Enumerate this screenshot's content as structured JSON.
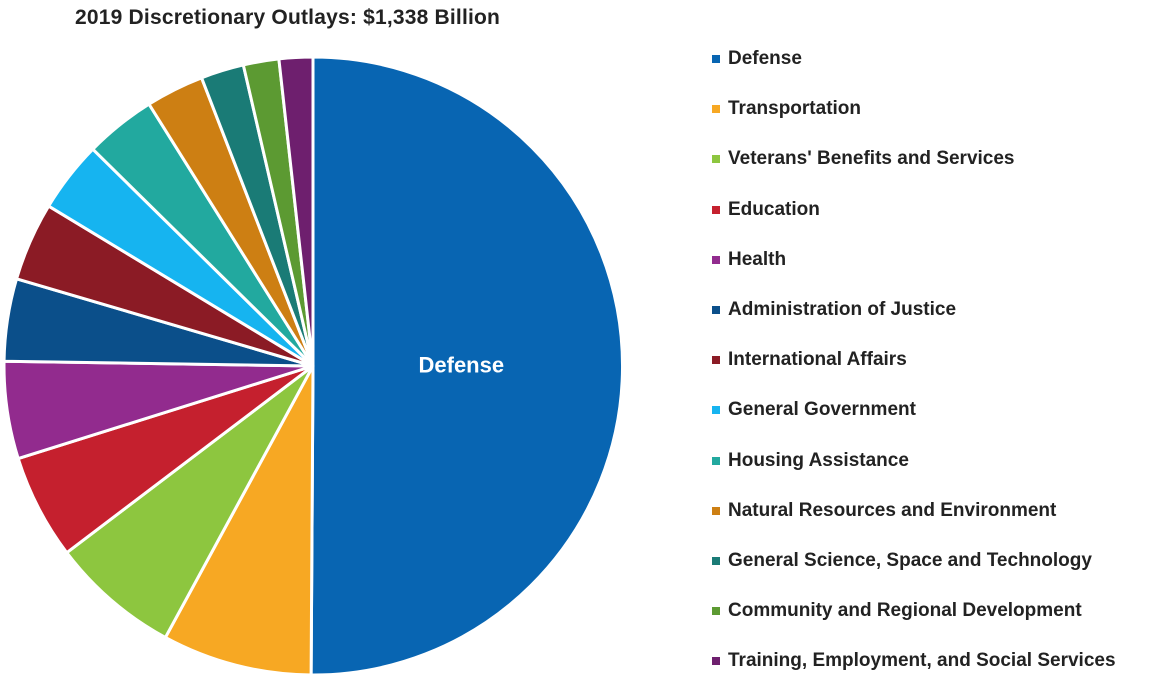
{
  "chart_data": {
    "type": "pie",
    "title": "2019 Discretionary Outlays: $1,338 Billion",
    "labels": [
      "Defense",
      "Transportation",
      "Veterans' Benefits and Services",
      "Education",
      "Health",
      "Administration of Justice",
      "International Affairs",
      "General Government",
      "Housing Assistance",
      "Natural Resources and Environment",
      "General Science, Space and Technology",
      "Community and Regional Development",
      "Training, Employment, and Social Services"
    ],
    "values": [
      51.2,
      8.0,
      6.9,
      5.6,
      5.2,
      4.4,
      4.2,
      3.8,
      3.8,
      3.1,
      2.3,
      1.9,
      1.8
    ],
    "colors": [
      "#0865b2",
      "#f7a823",
      "#8dc63f",
      "#c5202e",
      "#922b8e",
      "#0b4f8a",
      "#8b1b25",
      "#16b4f0",
      "#22a99f",
      "#cd7f13",
      "#1a7b76",
      "#5c9a32",
      "#6e1f6e"
    ],
    "slice_labels": {
      "0": "Defense"
    },
    "legend_position": "right",
    "start_angle_deg": 0,
    "direction": "clockwise"
  }
}
